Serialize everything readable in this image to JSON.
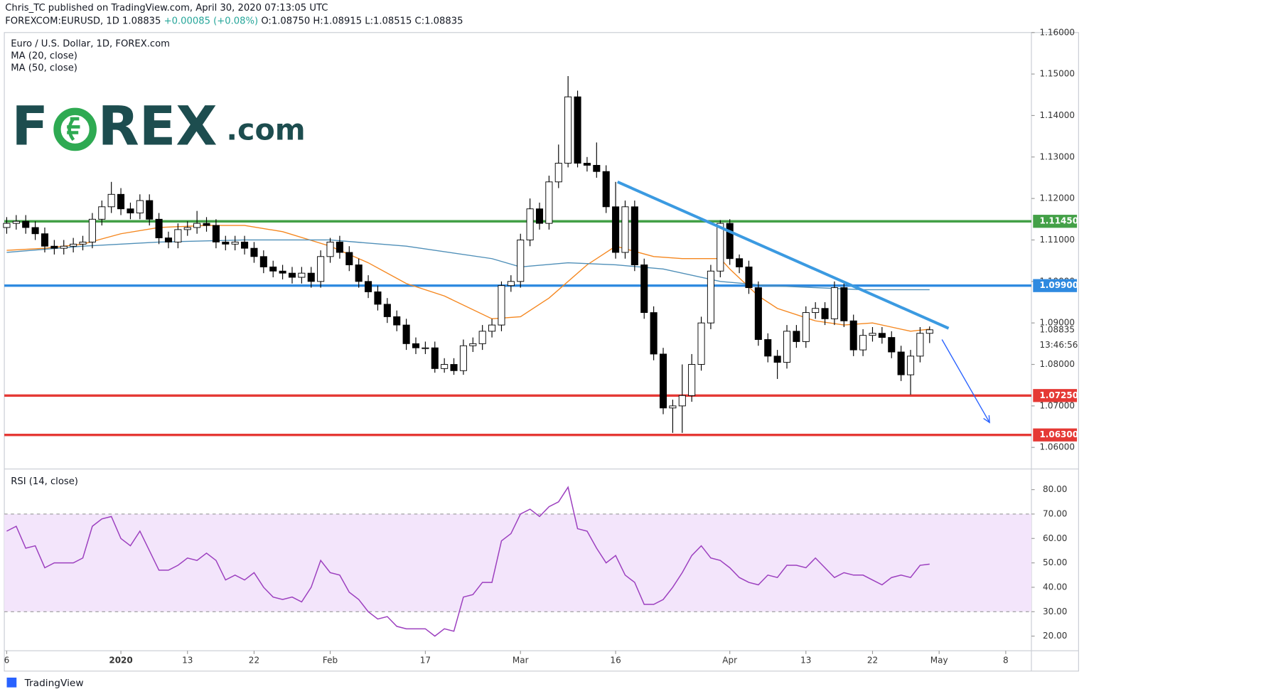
{
  "header": {
    "published": "Chris_TC published on TradingView.com, April 30, 2020 07:13:05 UTC",
    "symbol": "FOREXCOM:EURUSD, 1D",
    "last": "1.08835",
    "change": "+0.00085 (+0.08%)",
    "open": "O:1.08750",
    "high": "H:1.08915",
    "low": "L:1.08515",
    "close": "C:1.08835"
  },
  "logo": {
    "left": "F",
    "right": "REX",
    "suffix": ".com"
  },
  "footer": "TradingView",
  "chart_data": [
    {
      "type": "candlestick",
      "title": "Euro / U.S. Dollar, 1D, FOREX.com",
      "xlim": [
        -0.25,
        107.7
      ],
      "xticks": [
        {
          "value": 0,
          "label": "6"
        },
        {
          "value": 12,
          "label": "2020"
        },
        {
          "value": 19,
          "label": "13"
        },
        {
          "value": 26,
          "label": "22"
        },
        {
          "value": 34,
          "label": "Feb"
        },
        {
          "value": 44,
          "label": "17"
        },
        {
          "value": 54,
          "label": "Mar"
        },
        {
          "value": 64,
          "label": "16"
        },
        {
          "value": 76,
          "label": "Apr"
        },
        {
          "value": 84,
          "label": "13"
        },
        {
          "value": 91,
          "label": "22"
        },
        {
          "value": 98,
          "label": "May"
        },
        {
          "value": 105,
          "label": "8"
        }
      ],
      "ylim": [
        1.0549,
        1.16
      ],
      "yticks": [
        {
          "value": 1.06,
          "label": "1.06000"
        },
        {
          "value": 1.07,
          "label": "1.07000"
        },
        {
          "value": 1.08,
          "label": "1.08000"
        },
        {
          "value": 1.09,
          "label": "1.09000"
        },
        {
          "value": 1.1,
          "label": "1.10000"
        },
        {
          "value": 1.11,
          "label": "1.11000"
        },
        {
          "value": 1.12,
          "label": "1.12000"
        },
        {
          "value": 1.13,
          "label": "1.13000"
        },
        {
          "value": 1.14,
          "label": "1.14000"
        },
        {
          "value": 1.15,
          "label": "1.15000"
        },
        {
          "value": 1.16,
          "label": "1.16000"
        }
      ],
      "up_color": "#ffffff",
      "down_color": "#000000",
      "candles": {
        "open": [
          1.113,
          1.114,
          1.1145,
          1.113,
          1.1115,
          1.1085,
          1.108,
          1.1085,
          1.109,
          1.1095,
          1.115,
          1.118,
          1.121,
          1.1175,
          1.1165,
          1.1195,
          1.115,
          1.1105,
          1.1095,
          1.1125,
          1.113,
          1.114,
          1.1135,
          1.1095,
          1.109,
          1.1095,
          1.108,
          1.106,
          1.1035,
          1.1025,
          1.102,
          1.101,
          1.102,
          1.1,
          1.106,
          1.1095,
          1.107,
          1.104,
          1.1,
          1.0975,
          1.0945,
          1.0915,
          1.0895,
          1.085,
          1.084,
          1.084,
          1.079,
          1.08,
          1.0785,
          1.0845,
          1.085,
          1.088,
          1.0895,
          1.099,
          1.1,
          1.11,
          1.1175,
          1.114,
          1.124,
          1.1285,
          1.1445,
          1.1285,
          1.128,
          1.1265,
          1.118,
          1.107,
          1.118,
          1.104,
          1.0925,
          1.0825,
          1.0695,
          1.07,
          1.0725,
          1.08,
          1.09,
          1.1025,
          1.114,
          1.1055,
          1.1035,
          1.0985,
          1.086,
          1.082,
          1.0805,
          1.088,
          1.0855,
          1.0925,
          1.0935,
          1.091,
          1.0985,
          1.0905,
          1.0835,
          1.087,
          1.0875,
          1.0865,
          1.083,
          1.0775,
          1.082,
          1.0875
        ],
        "high": [
          1.1155,
          1.116,
          1.116,
          1.1145,
          1.113,
          1.11,
          1.11,
          1.1105,
          1.111,
          1.1165,
          1.1195,
          1.124,
          1.1225,
          1.119,
          1.121,
          1.121,
          1.1165,
          1.112,
          1.114,
          1.1145,
          1.117,
          1.1155,
          1.115,
          1.111,
          1.111,
          1.111,
          1.1095,
          1.1075,
          1.105,
          1.104,
          1.1035,
          1.1035,
          1.1035,
          1.1075,
          1.1105,
          1.111,
          1.1085,
          1.1055,
          1.1015,
          1.099,
          1.096,
          1.093,
          1.091,
          1.0865,
          1.0855,
          1.0855,
          1.0815,
          1.0815,
          1.086,
          1.0865,
          1.0895,
          1.091,
          1.1,
          1.1015,
          1.1115,
          1.12,
          1.119,
          1.1255,
          1.133,
          1.1495,
          1.146,
          1.13,
          1.1335,
          1.128,
          1.124,
          1.1195,
          1.1195,
          1.1055,
          1.094,
          1.084,
          1.0715,
          1.08,
          1.0825,
          1.0915,
          1.104,
          1.1148,
          1.115,
          1.1065,
          1.105,
          1.1,
          1.0875,
          1.0835,
          1.0895,
          1.0895,
          1.094,
          1.095,
          1.095,
          1.1,
          1.0995,
          1.092,
          1.0885,
          1.089,
          1.089,
          1.088,
          1.0845,
          1.0835,
          1.089,
          1.08915
        ],
        "low": [
          1.1115,
          1.1125,
          1.1115,
          1.11,
          1.107,
          1.1065,
          1.1065,
          1.107,
          1.1075,
          1.108,
          1.1135,
          1.1165,
          1.116,
          1.115,
          1.115,
          1.1135,
          1.109,
          1.108,
          1.108,
          1.111,
          1.1115,
          1.112,
          1.108,
          1.1075,
          1.1075,
          1.1065,
          1.1045,
          1.102,
          1.101,
          1.1005,
          1.0995,
          1.0995,
          1.0985,
          1.0985,
          1.1045,
          1.1055,
          1.1025,
          1.0985,
          1.096,
          1.093,
          1.09,
          1.088,
          1.0835,
          1.0825,
          1.0825,
          1.078,
          1.078,
          1.0775,
          1.0775,
          1.083,
          1.0835,
          1.0865,
          1.088,
          1.0975,
          1.0985,
          1.1085,
          1.1125,
          1.1125,
          1.1225,
          1.1275,
          1.1275,
          1.1265,
          1.125,
          1.1165,
          1.1055,
          1.1055,
          1.1025,
          1.091,
          1.081,
          1.068,
          1.0635,
          1.0635,
          1.071,
          1.0785,
          1.0885,
          1.101,
          1.104,
          1.102,
          1.097,
          1.0845,
          1.0805,
          1.0765,
          1.079,
          1.084,
          1.084,
          1.091,
          1.0895,
          1.0895,
          1.089,
          1.082,
          1.082,
          1.0855,
          1.085,
          1.0815,
          1.076,
          1.0727,
          1.0805,
          1.08515
        ],
        "close": [
          1.114,
          1.1145,
          1.113,
          1.1115,
          1.1085,
          1.108,
          1.1085,
          1.109,
          1.1095,
          1.115,
          1.118,
          1.121,
          1.1175,
          1.1165,
          1.1195,
          1.115,
          1.1105,
          1.1095,
          1.1125,
          1.113,
          1.114,
          1.1135,
          1.1095,
          1.109,
          1.1095,
          1.108,
          1.106,
          1.1035,
          1.1025,
          1.102,
          1.101,
          1.102,
          1.1,
          1.106,
          1.1095,
          1.107,
          1.104,
          1.1,
          1.0975,
          1.0945,
          1.0915,
          1.0895,
          1.085,
          1.084,
          1.084,
          1.079,
          1.08,
          1.0785,
          1.0845,
          1.085,
          1.088,
          1.0895,
          1.099,
          1.1,
          1.11,
          1.1175,
          1.114,
          1.124,
          1.1285,
          1.1445,
          1.1285,
          1.128,
          1.1265,
          1.118,
          1.107,
          1.118,
          1.104,
          1.0925,
          1.0825,
          1.0695,
          1.07,
          1.0725,
          1.08,
          1.09,
          1.1025,
          1.114,
          1.1055,
          1.1035,
          1.0985,
          1.086,
          1.082,
          1.0805,
          1.088,
          1.0855,
          1.0925,
          1.0935,
          1.091,
          1.0985,
          1.0905,
          1.0835,
          1.087,
          1.0875,
          1.0865,
          1.083,
          1.0775,
          1.082,
          1.0875,
          1.08835
        ]
      },
      "series": [
        {
          "name": "MA (20, close)",
          "color": "#f5871f",
          "x": [
            0,
            4,
            8,
            12,
            16,
            21,
            25,
            29,
            34,
            38,
            42,
            46,
            51,
            54,
            57,
            61,
            64,
            68,
            71,
            75,
            76,
            79,
            81,
            85,
            88,
            91,
            93,
            95,
            97
          ],
          "values": [
            1.1075,
            1.108,
            1.109,
            1.1115,
            1.113,
            1.1135,
            1.1135,
            1.112,
            1.1085,
            1.1045,
            1.0995,
            1.0965,
            1.091,
            1.0915,
            1.096,
            1.104,
            1.1085,
            1.106,
            1.1055,
            1.1055,
            1.103,
            1.0965,
            1.0935,
            1.0905,
            1.0895,
            1.09,
            1.089,
            1.088,
            1.0885
          ]
        },
        {
          "name": "MA (50, close)",
          "color": "#4f8fb8",
          "x": [
            0,
            8,
            16,
            25,
            34,
            42,
            51,
            54,
            59,
            64,
            69,
            75,
            80,
            85,
            90,
            97
          ],
          "values": [
            1.107,
            1.1085,
            1.1095,
            1.11,
            1.11,
            1.1085,
            1.1055,
            1.1035,
            1.1045,
            1.104,
            1.103,
            1.1,
            1.099,
            1.0985,
            1.098,
            1.098
          ]
        }
      ],
      "levels": [
        {
          "value": 1.1145,
          "label": "1.11450",
          "color": "#43a047"
        },
        {
          "value": 1.099,
          "label": "1.09900",
          "color": "#2f8ae0"
        },
        {
          "value": 1.0725,
          "label": "1.07250",
          "color": "#e53935"
        },
        {
          "value": 1.063,
          "label": "1.06300",
          "color": "#e53935"
        }
      ],
      "trendline": {
        "color": "#3b9ae1",
        "x": [
          64.2,
          99
        ],
        "values": [
          1.124,
          1.0887
        ]
      },
      "arrow": {
        "color": "#2962ff",
        "x": [
          98.3,
          103.3
        ],
        "values": [
          1.086,
          1.066
        ]
      },
      "countdown": "13:46:56"
    },
    {
      "type": "line",
      "title": "RSI (14, close)",
      "ylim": [
        14,
        88.3
      ],
      "yticks": [
        {
          "value": 20,
          "label": "20.00"
        },
        {
          "value": 30,
          "label": "30.00"
        },
        {
          "value": 40,
          "label": "40.00"
        },
        {
          "value": 50,
          "label": "50.00"
        },
        {
          "value": 60,
          "label": "60.00"
        },
        {
          "value": 70,
          "label": "70.00"
        },
        {
          "value": 80,
          "label": "80.00"
        }
      ],
      "band": [
        30,
        70
      ],
      "band_color": "#f3e5fb",
      "series": [
        {
          "name": "RSI (14, close)",
          "color": "#9c3fbf",
          "values": [
            63,
            65,
            56,
            57,
            48,
            50,
            50,
            50,
            52,
            65,
            68,
            69,
            60,
            57,
            63,
            55,
            47,
            47,
            49,
            52,
            51,
            54,
            51,
            43,
            45,
            43,
            46,
            40,
            36,
            35,
            36,
            34,
            40,
            51,
            46,
            45,
            38,
            35,
            30,
            27,
            28,
            24,
            23,
            23,
            23,
            20,
            23,
            22,
            36,
            37,
            42,
            42,
            59,
            62,
            70,
            72,
            69,
            73,
            75,
            81,
            64,
            63,
            56,
            50,
            53,
            45,
            42,
            33,
            33,
            35,
            40,
            46,
            53,
            57,
            52,
            51,
            48,
            44,
            42,
            41,
            45,
            44,
            49,
            49,
            48,
            52,
            48,
            44,
            46,
            45,
            45,
            43,
            41,
            44,
            45,
            44,
            49,
            49.5
          ]
        }
      ]
    }
  ]
}
